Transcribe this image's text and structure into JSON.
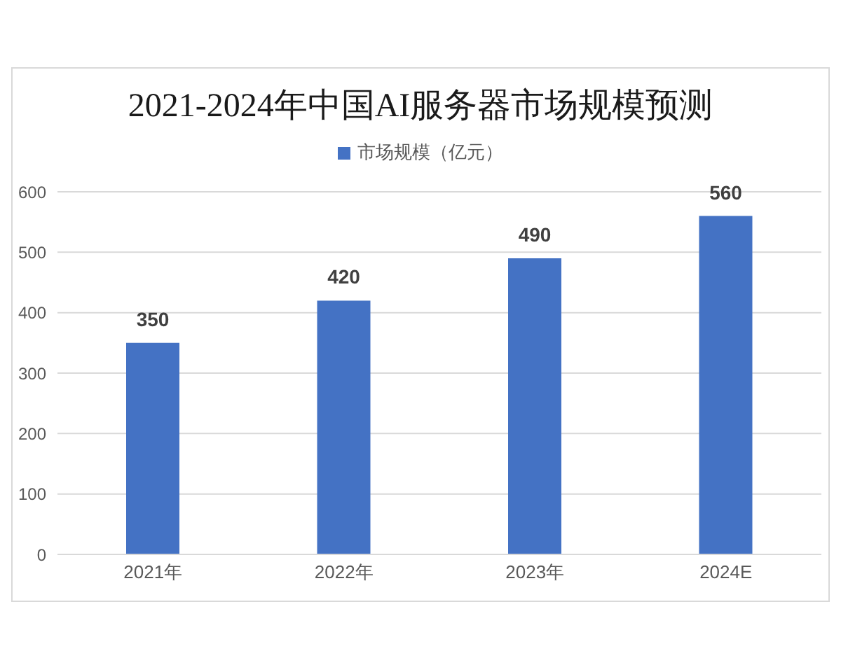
{
  "chart_data": {
    "type": "bar",
    "title": "2021-2024年中国AI服务器市场规模预测",
    "categories": [
      "2021年",
      "2022年",
      "2023年",
      "2024E"
    ],
    "series": [
      {
        "name": "市场规模（亿元）",
        "color": "#4472c4",
        "values": [
          350,
          420,
          490,
          560
        ]
      }
    ],
    "ylim": [
      0,
      600
    ],
    "yticks": [
      0,
      100,
      200,
      300,
      400,
      500,
      600
    ],
    "grid": "y",
    "legend": "top",
    "data_labels": true
  }
}
